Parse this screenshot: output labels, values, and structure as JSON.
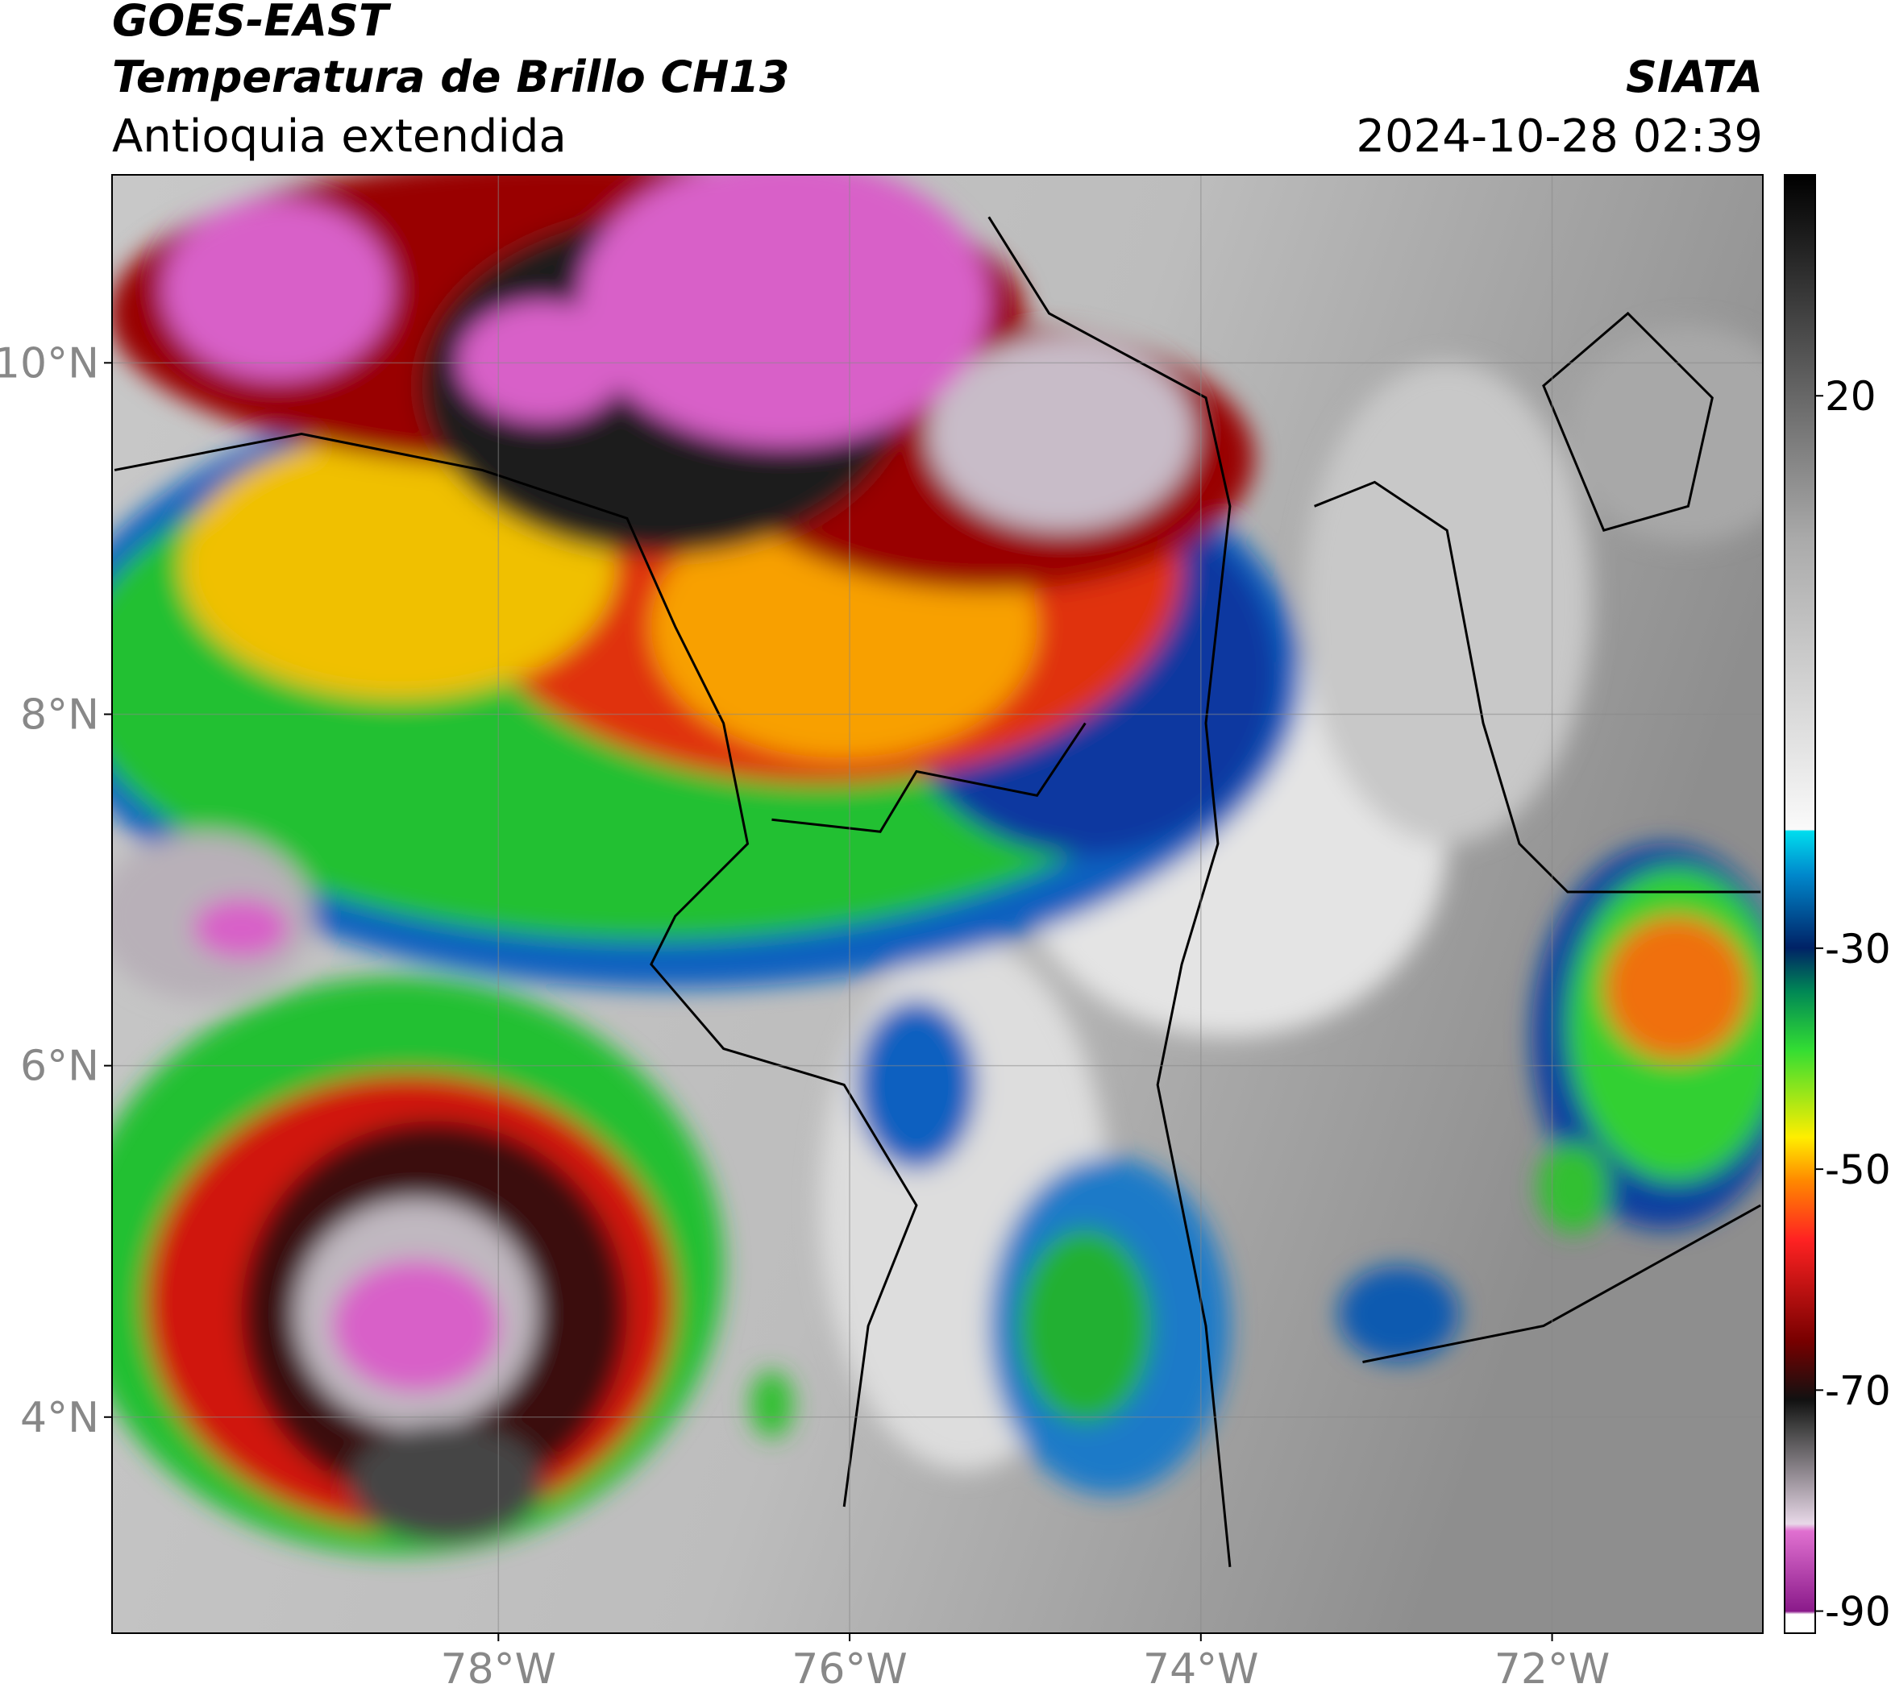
{
  "header": {
    "line1": "GOES-EAST",
    "line2": "Temperatura de Brillo CH13",
    "line3": "Antioquia extendida",
    "source": "SIATA",
    "timestamp": "2024-10-28 02:39"
  },
  "map": {
    "xlim": [
      -80.2,
      -70.8
    ],
    "ylim": [
      2.77,
      11.07
    ],
    "xticks": [
      {
        "value": -78,
        "label": "78°W"
      },
      {
        "value": -76,
        "label": "76°W"
      },
      {
        "value": -74,
        "label": "74°W"
      },
      {
        "value": -72,
        "label": "72°W"
      }
    ],
    "yticks": [
      {
        "value": 10,
        "label": "10°N"
      },
      {
        "value": 8,
        "label": "8°N"
      },
      {
        "value": 6,
        "label": "6°N"
      },
      {
        "value": 4,
        "label": "4°N"
      }
    ],
    "grid": true
  },
  "colorbar": {
    "lim": [
      -92,
      40
    ],
    "ticks": [
      20,
      -30,
      -50,
      -70,
      -90
    ]
  }
}
